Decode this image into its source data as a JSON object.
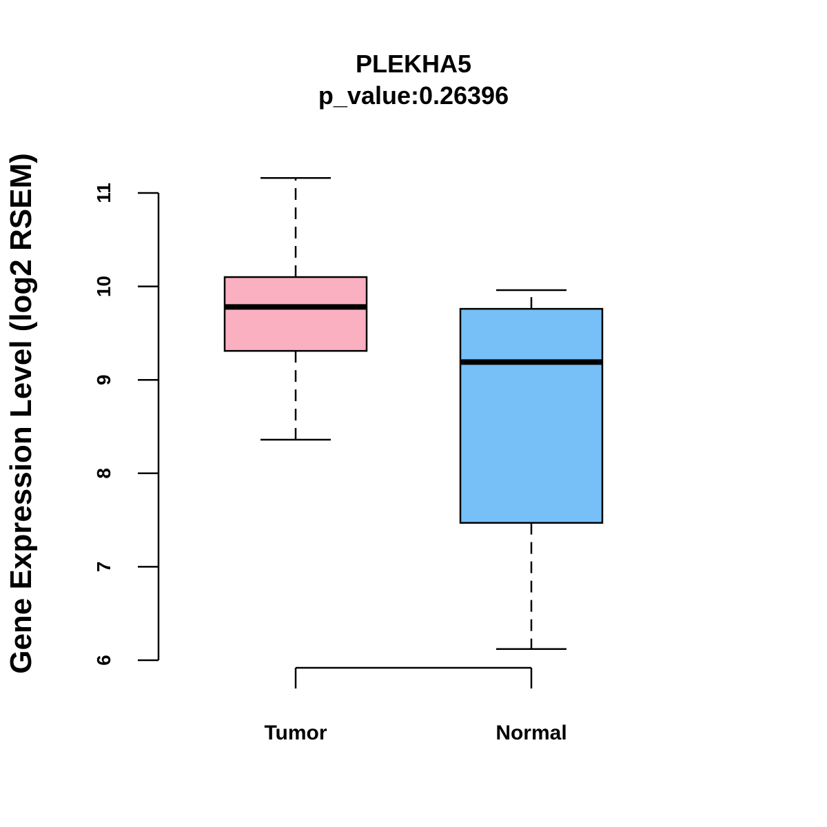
{
  "chart_data": {
    "type": "box",
    "title": "PLEKHA5",
    "subtitle": "p_value:0.26396",
    "ylabel": "Gene Expression Level (log2 RSEM)",
    "xlabel": "",
    "ylim": [
      6,
      11
    ],
    "yticks": [
      "6",
      "7",
      "8",
      "9",
      "10",
      "11"
    ],
    "grid": false,
    "categories": [
      "Tumor",
      "Normal"
    ],
    "boxes": [
      {
        "name": "Tumor",
        "whisker_low": 8.36,
        "q1": 9.31,
        "median": 9.78,
        "q3": 10.1,
        "whisker_high": 11.16,
        "color": "#FBB0C1"
      },
      {
        "name": "Normal",
        "whisker_low": 6.12,
        "q1": 7.47,
        "median": 9.19,
        "q3": 9.76,
        "whisker_high": 9.96,
        "color": "#76C0F7"
      }
    ]
  }
}
